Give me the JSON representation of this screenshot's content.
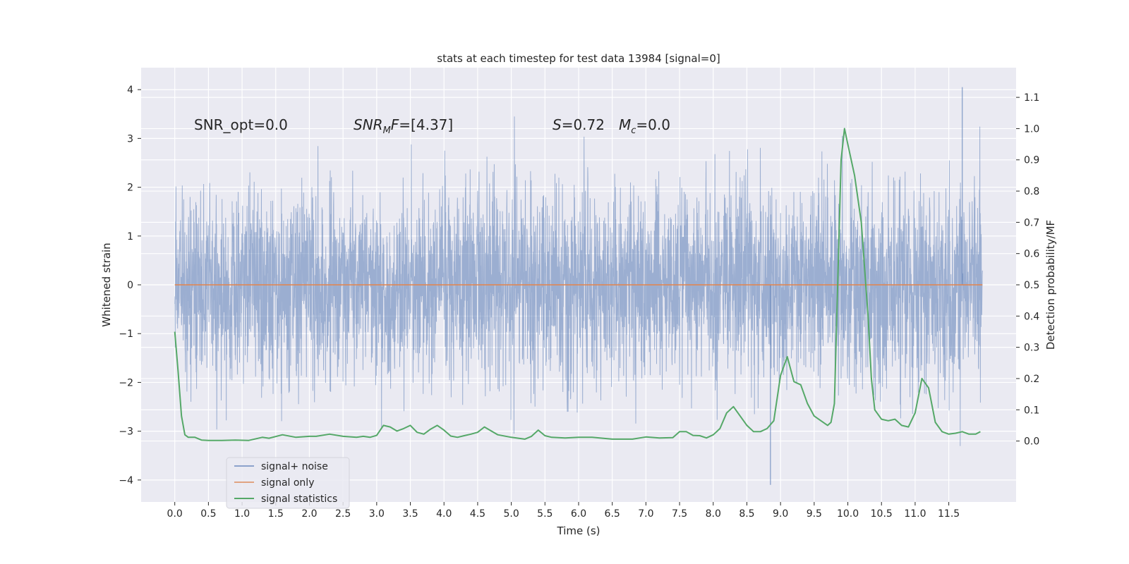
{
  "chart_data": {
    "type": "line",
    "title": "stats at each timestep for test data 13984 [signal=0]",
    "xlabel": "Time (s)",
    "ylabel": "Whitened strain",
    "y2label": "Detection probability/MF",
    "xlim": [
      -0.5,
      12.5
    ],
    "ylim": [
      -4.45,
      4.45
    ],
    "y2lim": [
      -0.195,
      1.195
    ],
    "x_ticks": [
      0.0,
      0.5,
      1.0,
      1.5,
      2.0,
      2.5,
      3.0,
      3.5,
      4.0,
      4.5,
      5.0,
      5.5,
      6.0,
      6.5,
      7.0,
      7.5,
      8.0,
      8.5,
      9.0,
      9.5,
      10.0,
      10.5,
      11.0,
      11.5
    ],
    "x_tick_labels": [
      "0.0",
      "0.5",
      "1.0",
      "1.5",
      "2.0",
      "2.5",
      "3.0",
      "3.5",
      "4.0",
      "4.5",
      "5.0",
      "5.5",
      "6.0",
      "6.5",
      "7.0",
      "7.5",
      "8.0",
      "8.5",
      "9.0",
      "9.5",
      "10.0",
      "10.5",
      "11.0",
      "11.5"
    ],
    "y_ticks": [
      -4,
      -3,
      -2,
      -1,
      0,
      1,
      2,
      3,
      4
    ],
    "y_tick_labels": [
      "−4",
      "−3",
      "−2",
      "−1",
      "0",
      "1",
      "2",
      "3",
      "4"
    ],
    "y2_ticks": [
      0.0,
      0.1,
      0.2,
      0.3,
      0.4,
      0.5,
      0.6,
      0.7,
      0.8,
      0.9,
      1.0,
      1.1
    ],
    "y2_tick_labels": [
      "0.0",
      "0.1",
      "0.2",
      "0.3",
      "0.4",
      "0.5",
      "0.6",
      "0.7",
      "0.8",
      "0.9",
      "1.0",
      "1.1"
    ],
    "annotations": {
      "snr_opt": "SNR_opt=0.0",
      "snr_mf_main": "SNR",
      "snr_mf_sub": "M",
      "snr_mf_tail": "F=[4.37]",
      "s_main": "S",
      "s_tail": "=0.72",
      "mc_main": "M",
      "mc_sub": "c",
      "mc_tail": "=0.0"
    },
    "legend": {
      "position": "lower-left",
      "entries": [
        "signal+ noise",
        "signal only",
        "signal statistics"
      ]
    },
    "colors": {
      "background": "#eaeaf2",
      "grid": "#ffffff",
      "noise": "#4c72b0",
      "signal": "#dd8452",
      "stats": "#55a868",
      "text": "#262626"
    },
    "series": [
      {
        "name": "signal+ noise",
        "axis": "left",
        "description": "dense whitened noise, approx. Gaussian, unit variance, from 0.0 to 12.0 s",
        "x_range": [
          0.0,
          12.0
        ],
        "std": 1.0,
        "envelope_max": 4.05,
        "envelope_min": -4.1,
        "extremes": [
          {
            "x": 11.7,
            "y": 4.05
          },
          {
            "x": 8.85,
            "y": -4.1
          }
        ]
      },
      {
        "name": "signal only",
        "axis": "left",
        "x": [
          0.0,
          12.0
        ],
        "values": [
          0.0,
          0.0
        ]
      },
      {
        "name": "signal statistics",
        "axis": "right",
        "x": [
          0.0,
          0.05,
          0.1,
          0.15,
          0.2,
          0.3,
          0.4,
          0.5,
          0.7,
          0.9,
          1.1,
          1.3,
          1.4,
          1.6,
          1.8,
          2.0,
          2.1,
          2.3,
          2.5,
          2.7,
          2.8,
          2.9,
          3.0,
          3.1,
          3.2,
          3.3,
          3.4,
          3.5,
          3.6,
          3.7,
          3.8,
          3.9,
          4.0,
          4.1,
          4.2,
          4.3,
          4.4,
          4.5,
          4.6,
          4.8,
          5.0,
          5.2,
          5.3,
          5.4,
          5.5,
          5.6,
          5.8,
          6.0,
          6.2,
          6.5,
          6.8,
          7.0,
          7.2,
          7.4,
          7.5,
          7.6,
          7.7,
          7.8,
          7.9,
          8.0,
          8.1,
          8.2,
          8.3,
          8.4,
          8.5,
          8.6,
          8.7,
          8.8,
          8.9,
          9.0,
          9.1,
          9.2,
          9.3,
          9.4,
          9.5,
          9.6,
          9.7,
          9.75,
          9.8,
          9.9,
          9.95,
          10.0,
          10.1,
          10.2,
          10.3,
          10.35,
          10.4,
          10.5,
          10.6,
          10.7,
          10.8,
          10.9,
          11.0,
          11.1,
          11.2,
          11.3,
          11.4,
          11.5,
          11.6,
          11.7,
          11.8,
          11.9,
          11.97
        ],
        "values": [
          0.35,
          0.22,
          0.08,
          0.02,
          0.012,
          0.012,
          0.003,
          0.002,
          0.002,
          0.003,
          0.002,
          0.012,
          0.009,
          0.02,
          0.012,
          0.015,
          0.015,
          0.022,
          0.015,
          0.012,
          0.015,
          0.012,
          0.018,
          0.05,
          0.045,
          0.032,
          0.04,
          0.05,
          0.028,
          0.022,
          0.038,
          0.05,
          0.035,
          0.016,
          0.012,
          0.017,
          0.022,
          0.028,
          0.045,
          0.02,
          0.012,
          0.006,
          0.015,
          0.035,
          0.017,
          0.012,
          0.01,
          0.012,
          0.012,
          0.006,
          0.006,
          0.013,
          0.01,
          0.011,
          0.03,
          0.03,
          0.018,
          0.017,
          0.01,
          0.02,
          0.04,
          0.09,
          0.11,
          0.08,
          0.05,
          0.03,
          0.03,
          0.04,
          0.065,
          0.21,
          0.27,
          0.19,
          0.18,
          0.12,
          0.08,
          0.065,
          0.05,
          0.06,
          0.12,
          0.9,
          1.0,
          0.95,
          0.85,
          0.7,
          0.4,
          0.2,
          0.1,
          0.07,
          0.065,
          0.07,
          0.05,
          0.045,
          0.09,
          0.2,
          0.17,
          0.06,
          0.03,
          0.022,
          0.025,
          0.03,
          0.022,
          0.022,
          0.03
        ]
      }
    ]
  }
}
